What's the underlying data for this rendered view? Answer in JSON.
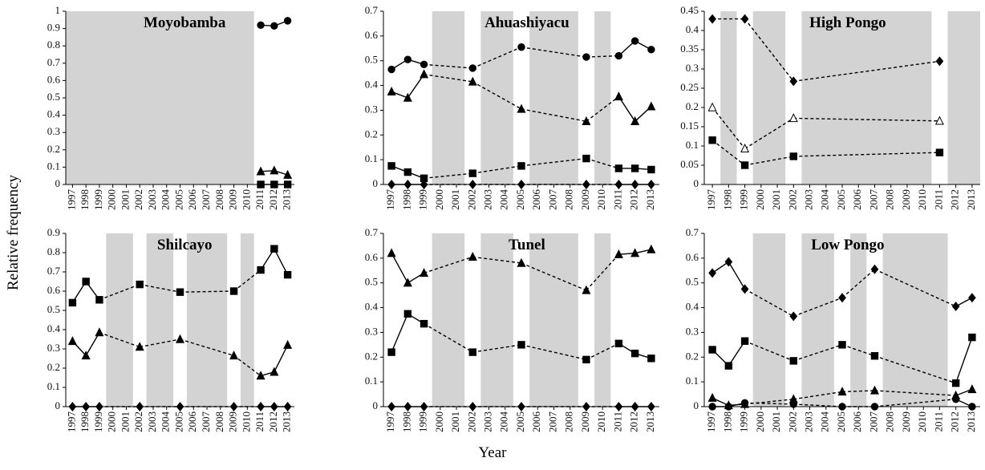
{
  "ylabel": "Relative frequency",
  "xlabel": "Year",
  "chart_data": [
    {
      "type": "line",
      "title": "Moyobamba",
      "x": [
        1997,
        1998,
        1999,
        2000,
        2001,
        2002,
        2003,
        2004,
        2005,
        2006,
        2007,
        2008,
        2009,
        2010,
        2011,
        2012,
        2013
      ],
      "xlim": [
        1996.5,
        2013.5
      ],
      "ylim": [
        0,
        1
      ],
      "yticks": [
        0,
        0.1,
        0.2,
        0.3,
        0.4,
        0.5,
        0.6,
        0.7,
        0.8,
        0.9,
        1
      ],
      "shaded": [
        [
          1996.5,
          2010.5
        ]
      ],
      "shade_color": "#d3d3d3",
      "series": [
        {
          "marker": "circle",
          "color": "#000000",
          "fill": "#000000",
          "values": [
            null,
            null,
            null,
            null,
            null,
            null,
            null,
            null,
            null,
            null,
            null,
            null,
            null,
            null,
            0.92,
            0.915,
            0.945
          ]
        },
        {
          "marker": "triangle",
          "color": "#000000",
          "fill": "#000000",
          "values": [
            null,
            null,
            null,
            null,
            null,
            null,
            null,
            null,
            null,
            null,
            null,
            null,
            null,
            null,
            0.075,
            0.08,
            0.055
          ]
        },
        {
          "marker": "square",
          "color": "#000000",
          "fill": "#000000",
          "values": [
            null,
            null,
            null,
            null,
            null,
            null,
            null,
            null,
            null,
            null,
            null,
            null,
            null,
            null,
            0,
            0,
            0
          ]
        }
      ]
    },
    {
      "type": "line",
      "title": "Ahuashiyacu",
      "x": [
        1997,
        1998,
        1999,
        2000,
        2001,
        2002,
        2003,
        2004,
        2005,
        2006,
        2007,
        2008,
        2009,
        2010,
        2011,
        2012,
        2013
      ],
      "xlim": [
        1996.5,
        2013.5
      ],
      "ylim": [
        0,
        0.7
      ],
      "yticks": [
        0,
        0.1,
        0.2,
        0.3,
        0.4,
        0.5,
        0.6,
        0.7
      ],
      "shaded": [
        [
          1999.5,
          2001.5
        ],
        [
          2002.5,
          2004.5
        ],
        [
          2005.5,
          2008.5
        ],
        [
          2009.5,
          2010.5
        ]
      ],
      "shade_color": "#d3d3d3",
      "series": [
        {
          "marker": "circle",
          "color": "#000000",
          "fill": "#000000",
          "values": [
            0.465,
            0.505,
            0.485,
            null,
            null,
            0.47,
            null,
            null,
            0.555,
            null,
            null,
            null,
            0.515,
            null,
            0.52,
            0.58,
            0.545
          ]
        },
        {
          "marker": "triangle",
          "color": "#000000",
          "fill": "#000000",
          "values": [
            0.375,
            0.35,
            0.445,
            null,
            null,
            0.415,
            null,
            null,
            0.305,
            null,
            null,
            null,
            0.255,
            null,
            0.355,
            0.255,
            0.315
          ]
        },
        {
          "marker": "square",
          "color": "#000000",
          "fill": "#000000",
          "values": [
            0.075,
            0.05,
            0.025,
            null,
            null,
            0.045,
            null,
            null,
            0.075,
            null,
            null,
            null,
            0.105,
            null,
            0.065,
            0.065,
            0.06
          ]
        },
        {
          "marker": "diamond",
          "color": "#000000",
          "fill": "#000000",
          "values": [
            0,
            0,
            0,
            null,
            null,
            0,
            null,
            null,
            0,
            null,
            null,
            null,
            0,
            null,
            0,
            0,
            0
          ]
        }
      ]
    },
    {
      "type": "line",
      "title": "High Pongo",
      "x": [
        1997,
        1998,
        1999,
        2000,
        2001,
        2002,
        2003,
        2004,
        2005,
        2006,
        2007,
        2008,
        2009,
        2010,
        2011,
        2012,
        2013
      ],
      "xlim": [
        1996.5,
        2013.5
      ],
      "ylim": [
        0,
        0.45
      ],
      "yticks": [
        0,
        0.05,
        0.1,
        0.15,
        0.2,
        0.25,
        0.3,
        0.35,
        0.4,
        0.45
      ],
      "shaded": [
        [
          1997.5,
          1998.5
        ],
        [
          1999.5,
          2001.5
        ],
        [
          2002.5,
          2010.5
        ],
        [
          2011.5,
          2013.5
        ]
      ],
      "shade_color": "#d3d3d3",
      "series": [
        {
          "marker": "diamond",
          "color": "#000000",
          "fill": "#000000",
          "values": [
            0.43,
            null,
            0.43,
            null,
            null,
            0.268,
            null,
            null,
            null,
            null,
            null,
            null,
            null,
            null,
            0.32,
            null,
            null
          ]
        },
        {
          "marker": "triangle",
          "color": "#000000",
          "fill": "#ffffff",
          "values": [
            0.2,
            null,
            0.093,
            null,
            null,
            0.172,
            null,
            null,
            null,
            null,
            null,
            null,
            null,
            null,
            0.165,
            null,
            null
          ]
        },
        {
          "marker": "square",
          "color": "#000000",
          "fill": "#000000",
          "values": [
            0.115,
            null,
            0.05,
            null,
            null,
            0.073,
            null,
            null,
            null,
            null,
            null,
            null,
            null,
            null,
            0.083,
            null,
            null
          ]
        }
      ]
    },
    {
      "type": "line",
      "title": "Shilcayo",
      "x": [
        1997,
        1998,
        1999,
        2000,
        2001,
        2002,
        2003,
        2004,
        2005,
        2006,
        2007,
        2008,
        2009,
        2010,
        2011,
        2012,
        2013
      ],
      "xlim": [
        1996.5,
        2013.5
      ],
      "ylim": [
        0,
        0.9
      ],
      "yticks": [
        0,
        0.1,
        0.2,
        0.3,
        0.4,
        0.5,
        0.6,
        0.7,
        0.8,
        0.9
      ],
      "shaded": [
        [
          1999.5,
          2001.5
        ],
        [
          2002.5,
          2004.5
        ],
        [
          2005.5,
          2008.5
        ],
        [
          2009.5,
          2010.5
        ]
      ],
      "shade_color": "#d3d3d3",
      "series": [
        {
          "marker": "square",
          "color": "#000000",
          "fill": "#000000",
          "values": [
            0.54,
            0.65,
            0.555,
            null,
            null,
            0.635,
            null,
            null,
            0.595,
            null,
            null,
            null,
            0.6,
            null,
            0.71,
            0.82,
            0.685
          ]
        },
        {
          "marker": "triangle",
          "color": "#000000",
          "fill": "#000000",
          "values": [
            0.34,
            0.265,
            0.385,
            null,
            null,
            0.31,
            null,
            null,
            0.35,
            null,
            null,
            null,
            0.265,
            null,
            0.16,
            0.18,
            0.32
          ]
        },
        {
          "marker": "diamond",
          "color": "#000000",
          "fill": "#000000",
          "values": [
            0,
            0,
            0,
            null,
            null,
            0,
            null,
            null,
            0,
            null,
            null,
            null,
            0,
            null,
            0,
            0,
            0
          ]
        }
      ]
    },
    {
      "type": "line",
      "title": "Tunel",
      "x": [
        1997,
        1998,
        1999,
        2000,
        2001,
        2002,
        2003,
        2004,
        2005,
        2006,
        2007,
        2008,
        2009,
        2010,
        2011,
        2012,
        2013
      ],
      "xlim": [
        1996.5,
        2013.5
      ],
      "ylim": [
        0,
        0.7
      ],
      "yticks": [
        0,
        0.1,
        0.2,
        0.3,
        0.4,
        0.5,
        0.6,
        0.7
      ],
      "shaded": [
        [
          1999.5,
          2001.5
        ],
        [
          2002.5,
          2004.5
        ],
        [
          2005.5,
          2008.5
        ],
        [
          2009.5,
          2010.5
        ]
      ],
      "shade_color": "#d3d3d3",
      "series": [
        {
          "marker": "triangle",
          "color": "#000000",
          "fill": "#000000",
          "values": [
            0.62,
            0.5,
            0.54,
            null,
            null,
            0.605,
            null,
            null,
            0.58,
            null,
            null,
            null,
            0.47,
            null,
            0.615,
            0.62,
            0.635
          ]
        },
        {
          "marker": "square",
          "color": "#000000",
          "fill": "#000000",
          "values": [
            0.22,
            0.375,
            0.335,
            null,
            null,
            0.22,
            null,
            null,
            0.25,
            null,
            null,
            null,
            0.19,
            null,
            0.255,
            0.215,
            0.195
          ]
        },
        {
          "marker": "diamond",
          "color": "#000000",
          "fill": "#000000",
          "values": [
            0,
            0,
            0,
            null,
            null,
            0,
            null,
            null,
            0,
            null,
            null,
            null,
            0,
            null,
            0,
            0,
            0
          ]
        }
      ]
    },
    {
      "type": "line",
      "title": "Low Pongo",
      "x": [
        1997,
        1998,
        1999,
        2000,
        2001,
        2002,
        2003,
        2004,
        2005,
        2006,
        2007,
        2008,
        2009,
        2010,
        2011,
        2012,
        2013
      ],
      "xlim": [
        1996.5,
        2013.5
      ],
      "ylim": [
        0,
        0.7
      ],
      "yticks": [
        0,
        0.1,
        0.2,
        0.3,
        0.4,
        0.5,
        0.6,
        0.7
      ],
      "shaded": [
        [
          1999.5,
          2001.5
        ],
        [
          2002.5,
          2004.5
        ],
        [
          2005.5,
          2006.5
        ],
        [
          2007.5,
          2011.5
        ]
      ],
      "shade_color": "#d3d3d3",
      "series": [
        {
          "marker": "diamond",
          "color": "#000000",
          "fill": "#000000",
          "values": [
            0.54,
            0.585,
            0.475,
            null,
            null,
            0.365,
            null,
            null,
            0.44,
            null,
            0.555,
            null,
            null,
            null,
            null,
            0.405,
            0.44
          ]
        },
        {
          "marker": "square",
          "color": "#000000",
          "fill": "#000000",
          "values": [
            0.23,
            0.165,
            0.265,
            null,
            null,
            0.185,
            null,
            null,
            0.25,
            null,
            0.205,
            null,
            null,
            null,
            null,
            0.095,
            0.28
          ]
        },
        {
          "marker": "triangle",
          "color": "#000000",
          "fill": "#000000",
          "values": [
            0.035,
            0.005,
            0.01,
            null,
            null,
            0.03,
            null,
            null,
            0.06,
            null,
            0.065,
            null,
            null,
            null,
            null,
            0.045,
            0.07
          ]
        },
        {
          "marker": "circle",
          "color": "#000000",
          "fill": "#000000",
          "values": [
            0,
            0,
            0.015,
            null,
            null,
            0.01,
            null,
            null,
            0,
            null,
            0,
            null,
            null,
            null,
            null,
            0.03,
            0
          ]
        }
      ]
    }
  ]
}
